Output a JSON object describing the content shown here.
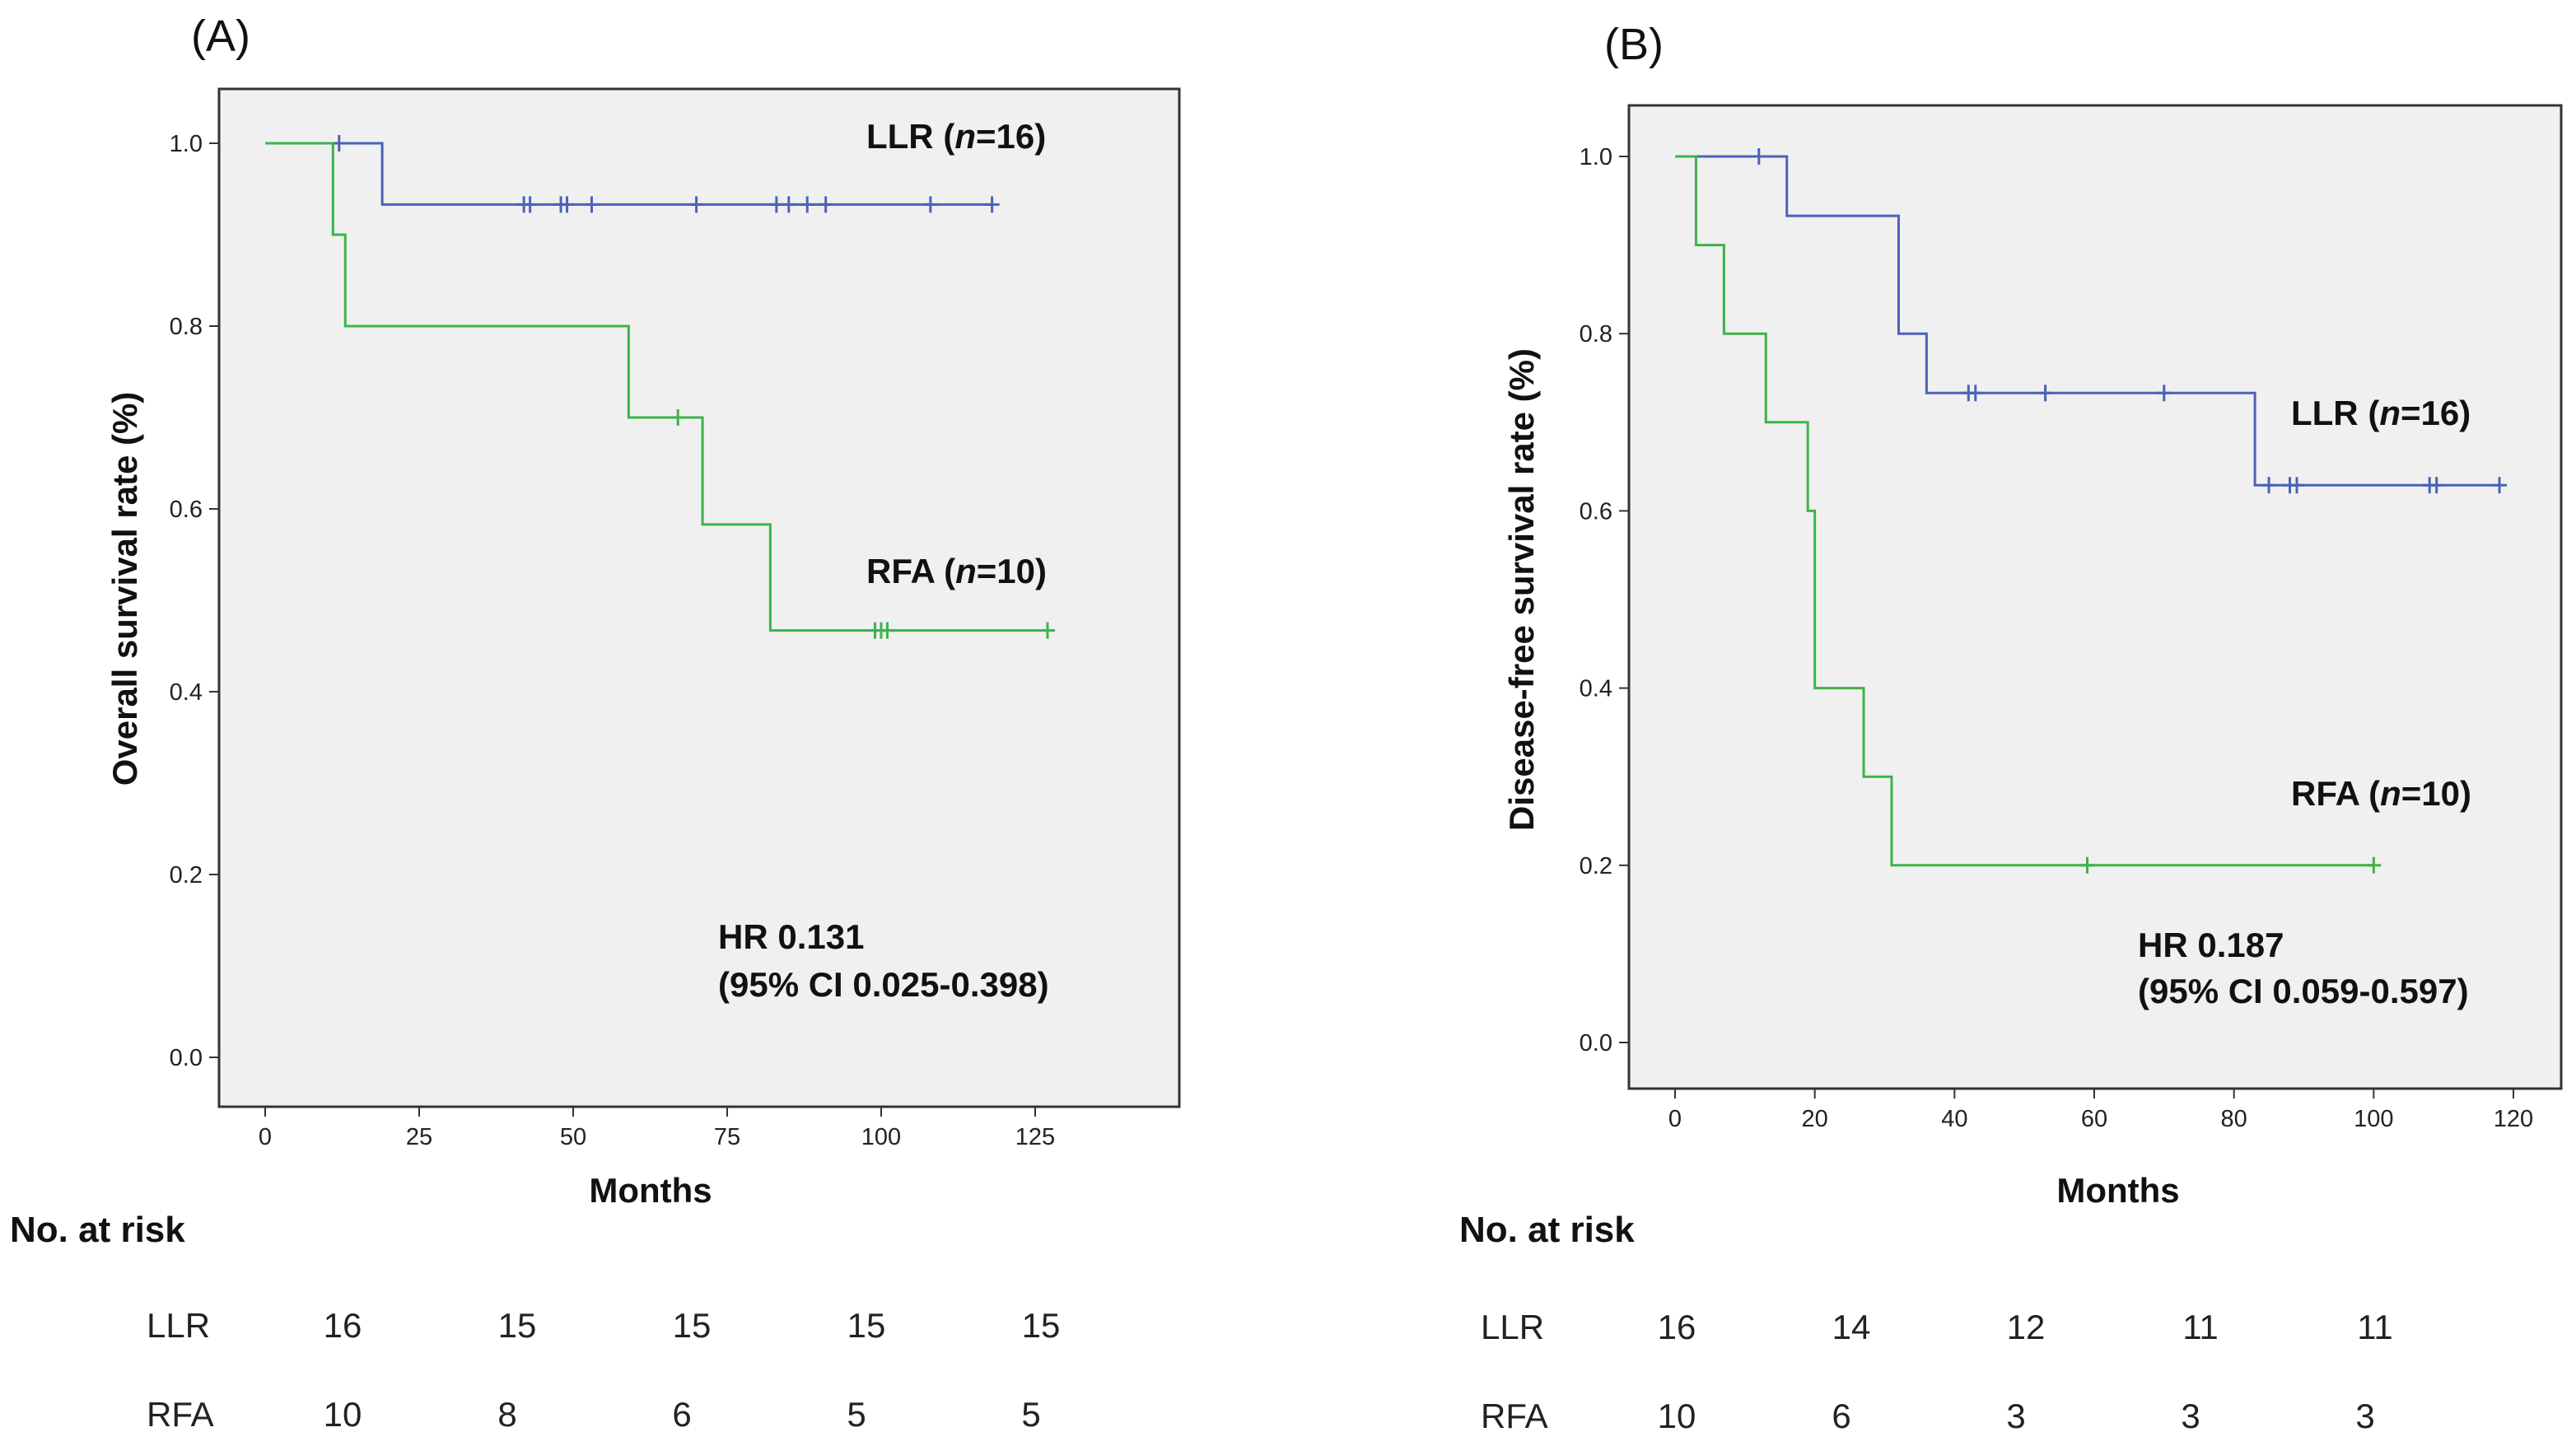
{
  "chart_data": [
    {
      "type": "line",
      "panel_label": "(A)",
      "xlabel": "Months",
      "ylabel": "Overall survival rate (%)",
      "xlim": [
        0,
        125
      ],
      "ylim": [
        0,
        1
      ],
      "xticks": [
        "0",
        "25",
        "50",
        "75",
        "100",
        "125"
      ],
      "yticks": [
        "0.0",
        "0.2",
        "0.4",
        "0.6",
        "0.8",
        "1.0"
      ],
      "grid": false,
      "series": [
        {
          "name": "LLR (n=16)",
          "color": "#4a62b8",
          "steps": [
            [
              0,
              1.0
            ],
            [
              19,
              0.933
            ],
            [
              118,
              0.933
            ]
          ],
          "censored": [
            [
              12,
              1.0
            ],
            [
              42,
              0.933
            ],
            [
              43,
              0.933
            ],
            [
              48,
              0.933
            ],
            [
              49,
              0.933
            ],
            [
              53,
              0.933
            ],
            [
              70,
              0.933
            ],
            [
              83,
              0.933
            ],
            [
              85,
              0.933
            ],
            [
              88,
              0.933
            ],
            [
              91,
              0.933
            ],
            [
              108,
              0.933
            ],
            [
              118,
              0.933
            ]
          ]
        },
        {
          "name": "RFA (n=10)",
          "color": "#3cb34a",
          "steps": [
            [
              0,
              1.0
            ],
            [
              11,
              0.9
            ],
            [
              13,
              0.8
            ],
            [
              59,
              0.7
            ],
            [
              71,
              0.583
            ],
            [
              82,
              0.467
            ],
            [
              127,
              0.467
            ]
          ],
          "censored": [
            [
              67,
              0.7
            ],
            [
              99,
              0.467
            ],
            [
              100,
              0.467
            ],
            [
              101,
              0.467
            ],
            [
              127,
              0.467
            ]
          ]
        }
      ],
      "annotations": {
        "llr_name": "LLR",
        "llr_n": "n",
        "llr_count": "=16)",
        "rfa_name": "RFA",
        "rfa_n": "n",
        "rfa_count": "=10)",
        "hr": "HR 0.131",
        "ci": "(95% CI 0.025-0.398)"
      },
      "risk_table": {
        "title": "No. at risk",
        "rows": [
          {
            "label": "LLR",
            "values": [
              "16",
              "15",
              "15",
              "15",
              "15"
            ]
          },
          {
            "label": "RFA",
            "values": [
              "10",
              "8",
              "6",
              "5",
              "5"
            ]
          }
        ]
      }
    },
    {
      "type": "line",
      "panel_label": "(B)",
      "xlabel": "Months",
      "ylabel": "Disease-free survival rate (%)",
      "xlim": [
        0,
        120
      ],
      "ylim": [
        0,
        1
      ],
      "xticks": [
        "0",
        "20",
        "40",
        "60",
        "80",
        "100",
        "120"
      ],
      "yticks": [
        "0.0",
        "0.2",
        "0.4",
        "0.6",
        "0.8",
        "1.0"
      ],
      "grid": false,
      "series": [
        {
          "name": "LLR (n=16)",
          "color": "#4a62b8",
          "steps": [
            [
              0,
              1.0
            ],
            [
              16,
              0.933
            ],
            [
              32,
              0.8
            ],
            [
              36,
              0.733
            ],
            [
              83,
              0.629
            ],
            [
              118,
              0.629
            ]
          ],
          "censored": [
            [
              12,
              1.0
            ],
            [
              42,
              0.733
            ],
            [
              43,
              0.733
            ],
            [
              53,
              0.733
            ],
            [
              70,
              0.733
            ],
            [
              85,
              0.629
            ],
            [
              88,
              0.629
            ],
            [
              89,
              0.629
            ],
            [
              108,
              0.629
            ],
            [
              109,
              0.629
            ],
            [
              118,
              0.629
            ]
          ]
        },
        {
          "name": "RFA (n=10)",
          "color": "#3cb34a",
          "steps": [
            [
              0,
              1.0
            ],
            [
              3,
              0.9
            ],
            [
              7,
              0.8
            ],
            [
              13,
              0.7
            ],
            [
              19,
              0.6
            ],
            [
              20,
              0.4
            ],
            [
              27,
              0.3
            ],
            [
              31,
              0.2
            ],
            [
              100,
              0.2
            ]
          ],
          "censored": [
            [
              59,
              0.2
            ],
            [
              100,
              0.2
            ]
          ]
        }
      ],
      "annotations": {
        "llr_name": "LLR",
        "llr_n": "n",
        "llr_count": "=16)",
        "rfa_name": "RFA",
        "rfa_n": "n",
        "rfa_count": "=10)",
        "hr": "HR 0.187",
        "ci": "(95% CI 0.059-0.597)"
      },
      "risk_table": {
        "title": "No. at risk",
        "rows": [
          {
            "label": "LLR",
            "values": [
              "16",
              "14",
              "12",
              "11",
              "11"
            ]
          },
          {
            "label": "RFA",
            "values": [
              "10",
              "6",
              "3",
              "3",
              "3"
            ]
          }
        ]
      }
    }
  ]
}
